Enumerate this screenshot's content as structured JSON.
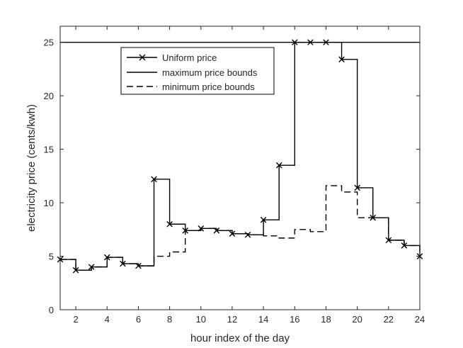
{
  "chart_data": {
    "type": "line",
    "title": "",
    "xlabel": "hour index of the day",
    "ylabel": "electricity price (cents/kwh)",
    "xlim": [
      1,
      24
    ],
    "ylim": [
      0,
      26.5
    ],
    "xticks": [
      2,
      4,
      6,
      8,
      10,
      12,
      14,
      16,
      18,
      20,
      22,
      24
    ],
    "yticks": [
      0,
      5,
      10,
      15,
      20,
      25
    ],
    "grid": false,
    "legend_position": "top-left",
    "series": [
      {
        "name": "Uniform price",
        "style": "stairs-markers",
        "color": "#000000",
        "x": [
          1,
          2,
          3,
          4,
          5,
          6,
          7,
          8,
          9,
          10,
          11,
          12,
          13,
          14,
          15,
          16,
          17,
          18,
          19,
          20,
          21,
          22,
          23,
          24
        ],
        "values": [
          4.7,
          3.7,
          4.0,
          4.9,
          4.3,
          4.1,
          12.2,
          8.0,
          7.4,
          7.6,
          7.4,
          7.1,
          7.0,
          8.4,
          13.5,
          25.0,
          25.0,
          25.0,
          23.4,
          11.4,
          8.6,
          6.5,
          6.0,
          5.0
        ]
      },
      {
        "name": "maximum price bounds",
        "style": "solid",
        "color": "#000000",
        "x": [
          1,
          24
        ],
        "values": [
          25,
          25
        ]
      },
      {
        "name": "minimum price bounds",
        "style": "dashed-stairs",
        "color": "#000000",
        "x": [
          1,
          2,
          3,
          4,
          5,
          6,
          7,
          8,
          9,
          10,
          11,
          12,
          13,
          14,
          15,
          16,
          17,
          18,
          19,
          20,
          21,
          22,
          23,
          24
        ],
        "values": [
          4.7,
          3.7,
          4.0,
          4.9,
          4.3,
          4.1,
          5.0,
          5.4,
          7.4,
          7.6,
          7.4,
          7.1,
          7.0,
          6.9,
          6.7,
          7.5,
          7.3,
          11.6,
          11.0,
          8.6,
          8.6,
          6.5,
          6.0,
          5.0
        ]
      }
    ]
  }
}
